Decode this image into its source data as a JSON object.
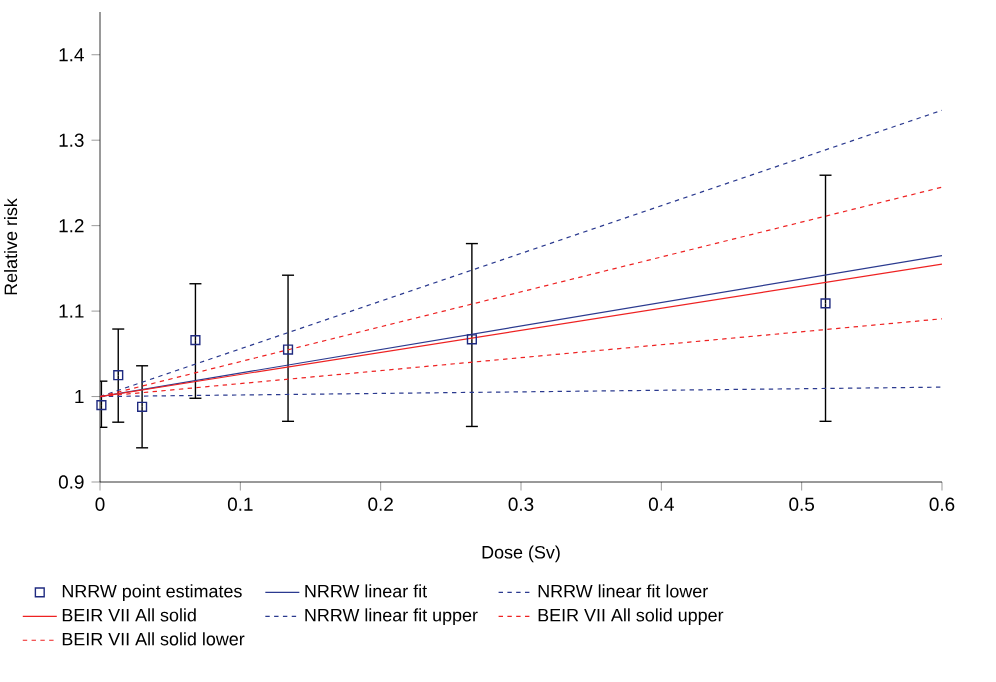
{
  "chart_data": {
    "type": "line",
    "xlabel": "Dose (Sv)",
    "ylabel": "Relative risk",
    "xlim": [
      0,
      0.6
    ],
    "ylim": [
      0.9,
      1.45
    ],
    "xticks": [
      0,
      0.1,
      0.2,
      0.3,
      0.4,
      0.5,
      0.6
    ],
    "yticks": [
      0.9,
      1,
      1.1,
      1.2,
      1.3,
      1.4
    ],
    "grid": false,
    "legend": "bottom",
    "series": [
      {
        "name": "NRRW point estimates",
        "type": "scatter",
        "marker": "square",
        "color": "#1f2a80",
        "x": [
          0.001,
          0.013,
          0.03,
          0.068,
          0.134,
          0.265,
          0.517
        ],
        "values": [
          0.99,
          1.025,
          0.988,
          1.066,
          1.055,
          1.067,
          1.109
        ],
        "errors": [
          [
            0.964,
            1.018
          ],
          [
            0.97,
            1.079
          ],
          [
            0.94,
            1.036
          ],
          [
            0.998,
            1.132
          ],
          [
            0.971,
            1.142
          ],
          [
            0.965,
            1.179
          ],
          [
            0.971,
            1.259
          ]
        ]
      },
      {
        "name": "NRRW linear fit",
        "line_style": "solid",
        "color": "#2b3a8f",
        "x": [
          0,
          0.6
        ],
        "values": [
          1.0,
          1.165
        ]
      },
      {
        "name": "NRRW linear fit lower",
        "line_style": "dashed",
        "color": "#2b3a8f",
        "x": [
          0,
          0.6
        ],
        "values": [
          1.0,
          1.011
        ]
      },
      {
        "name": "BEIR VII All solid",
        "line_style": "solid",
        "color": "#ee2222",
        "x": [
          0,
          0.6
        ],
        "values": [
          1.0,
          1.155
        ]
      },
      {
        "name": "NRRW linear fit upper",
        "line_style": "dashed",
        "color": "#2b3a8f",
        "x": [
          0,
          0.6
        ],
        "values": [
          1.0,
          1.335
        ]
      },
      {
        "name": "BEIR VII All solid upper",
        "line_style": "dashed",
        "color": "#ee2222",
        "x": [
          0,
          0.6
        ],
        "values": [
          1.0,
          1.245
        ]
      },
      {
        "name": "BEIR VII All solid lower",
        "line_style": "dashed",
        "color": "#ee2222",
        "x": [
          0,
          0.6
        ],
        "values": [
          1.0,
          1.091
        ]
      }
    ]
  }
}
